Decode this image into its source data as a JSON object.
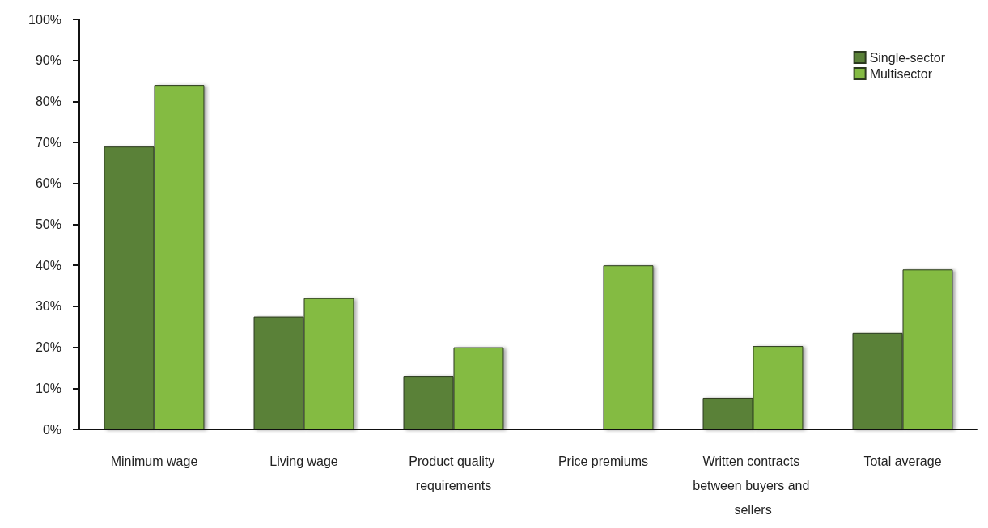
{
  "chart_data": {
    "type": "bar",
    "categories": [
      "Minimum wage",
      "Living wage",
      "Product quality requirements",
      "Price premiums",
      "Written contracts between buyers and sellers",
      "Total average"
    ],
    "series": [
      {
        "name": "Single-sector",
        "color": "#5a8138",
        "values": [
          69,
          27.5,
          13,
          null,
          7.7,
          23.5
        ]
      },
      {
        "name": "Multisector",
        "color": "#84bb43",
        "values": [
          84,
          32,
          20,
          40,
          20.3,
          39
        ]
      }
    ],
    "ylim": [
      0,
      100
    ],
    "yticks": [
      {
        "value": 0,
        "label": "0%"
      },
      {
        "value": 10,
        "label": "10%"
      },
      {
        "value": 20,
        "label": "20%"
      },
      {
        "value": 30,
        "label": "30%"
      },
      {
        "value": 40,
        "label": "40%"
      },
      {
        "value": 50,
        "label": "50%"
      },
      {
        "value": 60,
        "label": "60%"
      },
      {
        "value": 70,
        "label": "70%"
      },
      {
        "value": 80,
        "label": "80%"
      },
      {
        "value": 90,
        "label": "90%"
      },
      {
        "value": 100,
        "label": "100%"
      }
    ],
    "grid": false,
    "legend": "top right"
  }
}
